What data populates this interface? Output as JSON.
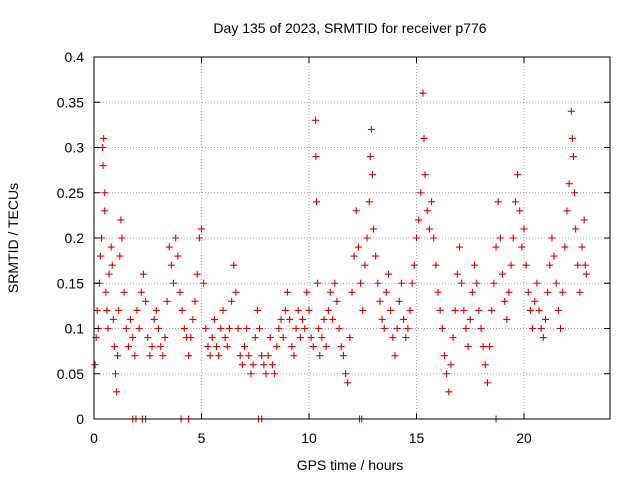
{
  "chart_data": {
    "type": "scatter",
    "title": "Day 135 of 2023, SRMTID for receiver p776",
    "xlabel": "GPS time / hours",
    "ylabel": "SRMTID / TECUs",
    "xlim": [
      0,
      24
    ],
    "ylim": [
      0,
      0.4
    ],
    "x_ticks": [
      0,
      5,
      10,
      15,
      20
    ],
    "x_tick_labels": [
      "0",
      "5",
      "10",
      "15",
      "20"
    ],
    "y_ticks": [
      0,
      0.05,
      0.1,
      0.15,
      0.2,
      0.25,
      0.3,
      0.35,
      0.4
    ],
    "y_tick_labels": [
      "0",
      "0.05",
      "0.1",
      "0.15",
      "0.2",
      "0.25",
      "0.3",
      "0.35",
      "0.4"
    ],
    "grid": true,
    "marker": "+",
    "series_color": "#e00000",
    "series": [
      {
        "name": "SRMTID",
        "points": [
          [
            0.05,
            0.06
          ],
          [
            0.1,
            0.09
          ],
          [
            0.15,
            0.12
          ],
          [
            0.2,
            0.1
          ],
          [
            0.25,
            0.15
          ],
          [
            0.3,
            0.18
          ],
          [
            0.35,
            0.2
          ],
          [
            0.4,
            0.3
          ],
          [
            0.42,
            0.28
          ],
          [
            0.45,
            0.31
          ],
          [
            0.5,
            0.25
          ],
          [
            0.5,
            0.23
          ],
          [
            0.55,
            0.14
          ],
          [
            0.6,
            0.12
          ],
          [
            0.65,
            0.1
          ],
          [
            0.7,
            0.16
          ],
          [
            0.8,
            0.19
          ],
          [
            0.85,
            0.17
          ],
          [
            0.9,
            0.11
          ],
          [
            0.95,
            0.08
          ],
          [
            1.0,
            0.05
          ],
          [
            1.05,
            0.03
          ],
          [
            1.1,
            0.07
          ],
          [
            1.15,
            0.12
          ],
          [
            1.2,
            0.18
          ],
          [
            1.25,
            0.22
          ],
          [
            1.3,
            0.2
          ],
          [
            1.4,
            0.14
          ],
          [
            1.5,
            0.1
          ],
          [
            1.6,
            0.08
          ],
          [
            1.7,
            0.11
          ],
          [
            1.8,
            0.09
          ],
          [
            1.9,
            0.07
          ],
          [
            2.0,
            0.12
          ],
          [
            2.1,
            0.1
          ],
          [
            2.2,
            0.14
          ],
          [
            2.3,
            0.16
          ],
          [
            2.4,
            0.13
          ],
          [
            2.5,
            0.09
          ],
          [
            2.6,
            0.07
          ],
          [
            2.7,
            0.08
          ],
          [
            2.8,
            0.11
          ],
          [
            2.9,
            0.12
          ],
          [
            3.0,
            0.1
          ],
          [
            3.1,
            0.08
          ],
          [
            3.2,
            0.07
          ],
          [
            3.3,
            0.09
          ],
          [
            3.4,
            0.13
          ],
          [
            3.5,
            0.19
          ],
          [
            3.6,
            0.17
          ],
          [
            3.7,
            0.15
          ],
          [
            3.8,
            0.2
          ],
          [
            3.9,
            0.18
          ],
          [
            4.0,
            0.14
          ],
          [
            4.1,
            0.12
          ],
          [
            4.2,
            0.1
          ],
          [
            4.3,
            0.09
          ],
          [
            4.4,
            0.07
          ],
          [
            4.5,
            0.09
          ],
          [
            4.6,
            0.11
          ],
          [
            4.7,
            0.13
          ],
          [
            4.8,
            0.16
          ],
          [
            4.9,
            0.2
          ],
          [
            5.0,
            0.21
          ],
          [
            5.1,
            0.15
          ],
          [
            5.2,
            0.1
          ],
          [
            5.3,
            0.08
          ],
          [
            5.4,
            0.07
          ],
          [
            5.5,
            0.09
          ],
          [
            5.6,
            0.11
          ],
          [
            5.7,
            0.08
          ],
          [
            5.8,
            0.07
          ],
          [
            5.9,
            0.1
          ],
          [
            6.0,
            0.12
          ],
          [
            6.1,
            0.09
          ],
          [
            6.2,
            0.08
          ],
          [
            6.3,
            0.1
          ],
          [
            6.4,
            0.13
          ],
          [
            6.5,
            0.17
          ],
          [
            6.6,
            0.14
          ],
          [
            6.7,
            0.1
          ],
          [
            6.8,
            0.07
          ],
          [
            6.9,
            0.06
          ],
          [
            7.0,
            0.08
          ],
          [
            7.1,
            0.1
          ],
          [
            7.2,
            0.07
          ],
          [
            7.3,
            0.05
          ],
          [
            7.4,
            0.06
          ],
          [
            7.5,
            0.09
          ],
          [
            7.6,
            0.12
          ],
          [
            7.7,
            0.1
          ],
          [
            7.8,
            0.07
          ],
          [
            7.9,
            0.06
          ],
          [
            8.0,
            0.05
          ],
          [
            8.1,
            0.07
          ],
          [
            8.2,
            0.09
          ],
          [
            8.3,
            0.06
          ],
          [
            8.4,
            0.05
          ],
          [
            8.5,
            0.08
          ],
          [
            8.6,
            0.1
          ],
          [
            8.7,
            0.11
          ],
          [
            8.8,
            0.09
          ],
          [
            8.9,
            0.12
          ],
          [
            9.0,
            0.14
          ],
          [
            9.1,
            0.11
          ],
          [
            9.2,
            0.08
          ],
          [
            9.3,
            0.07
          ],
          [
            9.4,
            0.1
          ],
          [
            9.5,
            0.12
          ],
          [
            9.6,
            0.09
          ],
          [
            9.7,
            0.11
          ],
          [
            9.8,
            0.1
          ],
          [
            9.9,
            0.14
          ],
          [
            10.0,
            0.12
          ],
          [
            10.1,
            0.09
          ],
          [
            10.2,
            0.08
          ],
          [
            10.3,
            0.33
          ],
          [
            10.32,
            0.29
          ],
          [
            10.35,
            0.24
          ],
          [
            10.4,
            0.15
          ],
          [
            10.45,
            0.1
          ],
          [
            10.5,
            0.07
          ],
          [
            10.6,
            0.09
          ],
          [
            10.7,
            0.11
          ],
          [
            10.8,
            0.08
          ],
          [
            10.9,
            0.12
          ],
          [
            11.0,
            0.14
          ],
          [
            11.1,
            0.11
          ],
          [
            11.2,
            0.15
          ],
          [
            11.3,
            0.13
          ],
          [
            11.4,
            0.1
          ],
          [
            11.5,
            0.08
          ],
          [
            11.6,
            0.07
          ],
          [
            11.7,
            0.05
          ],
          [
            11.8,
            0.04
          ],
          [
            11.9,
            0.09
          ],
          [
            12.0,
            0.14
          ],
          [
            12.1,
            0.18
          ],
          [
            12.2,
            0.23
          ],
          [
            12.3,
            0.19
          ],
          [
            12.4,
            0.15
          ],
          [
            12.5,
            0.12
          ],
          [
            12.6,
            0.17
          ],
          [
            12.7,
            0.2
          ],
          [
            12.8,
            0.24
          ],
          [
            12.85,
            0.29
          ],
          [
            12.9,
            0.32
          ],
          [
            12.95,
            0.27
          ],
          [
            13.0,
            0.21
          ],
          [
            13.1,
            0.18
          ],
          [
            13.2,
            0.15
          ],
          [
            13.3,
            0.13
          ],
          [
            13.4,
            0.11
          ],
          [
            13.5,
            0.1
          ],
          [
            13.6,
            0.14
          ],
          [
            13.7,
            0.16
          ],
          [
            13.8,
            0.12
          ],
          [
            13.9,
            0.09
          ],
          [
            14.0,
            0.07
          ],
          [
            14.1,
            0.1
          ],
          [
            14.2,
            0.13
          ],
          [
            14.3,
            0.15
          ],
          [
            14.4,
            0.11
          ],
          [
            14.5,
            0.09
          ],
          [
            14.6,
            0.1
          ],
          [
            14.7,
            0.12
          ],
          [
            14.8,
            0.15
          ],
          [
            14.9,
            0.17
          ],
          [
            15.0,
            0.2
          ],
          [
            15.1,
            0.22
          ],
          [
            15.2,
            0.25
          ],
          [
            15.3,
            0.36
          ],
          [
            15.35,
            0.31
          ],
          [
            15.4,
            0.27
          ],
          [
            15.5,
            0.23
          ],
          [
            15.6,
            0.21
          ],
          [
            15.7,
            0.24
          ],
          [
            15.8,
            0.2
          ],
          [
            15.9,
            0.17
          ],
          [
            16.0,
            0.14
          ],
          [
            16.1,
            0.12
          ],
          [
            16.2,
            0.1
          ],
          [
            16.3,
            0.07
          ],
          [
            16.4,
            0.05
          ],
          [
            16.5,
            0.03
          ],
          [
            16.6,
            0.06
          ],
          [
            16.7,
            0.09
          ],
          [
            16.8,
            0.12
          ],
          [
            16.9,
            0.16
          ],
          [
            17.0,
            0.19
          ],
          [
            17.1,
            0.15
          ],
          [
            17.2,
            0.12
          ],
          [
            17.3,
            0.1
          ],
          [
            17.4,
            0.08
          ],
          [
            17.5,
            0.11
          ],
          [
            17.6,
            0.14
          ],
          [
            17.7,
            0.17
          ],
          [
            17.8,
            0.15
          ],
          [
            17.9,
            0.12
          ],
          [
            18.0,
            0.1
          ],
          [
            18.1,
            0.08
          ],
          [
            18.2,
            0.06
          ],
          [
            18.3,
            0.04
          ],
          [
            18.4,
            0.08
          ],
          [
            18.5,
            0.12
          ],
          [
            18.6,
            0.15
          ],
          [
            18.7,
            0.19
          ],
          [
            18.8,
            0.24
          ],
          [
            18.9,
            0.2
          ],
          [
            19.0,
            0.16
          ],
          [
            19.1,
            0.13
          ],
          [
            19.2,
            0.11
          ],
          [
            19.3,
            0.14
          ],
          [
            19.4,
            0.17
          ],
          [
            19.5,
            0.2
          ],
          [
            19.6,
            0.24
          ],
          [
            19.7,
            0.27
          ],
          [
            19.8,
            0.23
          ],
          [
            19.9,
            0.19
          ],
          [
            20.0,
            0.21
          ],
          [
            20.1,
            0.17
          ],
          [
            20.2,
            0.14
          ],
          [
            20.3,
            0.12
          ],
          [
            20.4,
            0.1
          ],
          [
            20.5,
            0.13
          ],
          [
            20.6,
            0.15
          ],
          [
            20.7,
            0.12
          ],
          [
            20.8,
            0.1
          ],
          [
            20.9,
            0.09
          ],
          [
            21.0,
            0.11
          ],
          [
            21.1,
            0.14
          ],
          [
            21.2,
            0.17
          ],
          [
            21.3,
            0.2
          ],
          [
            21.4,
            0.18
          ],
          [
            21.5,
            0.15
          ],
          [
            21.6,
            0.12
          ],
          [
            21.7,
            0.1
          ],
          [
            21.8,
            0.14
          ],
          [
            21.9,
            0.19
          ],
          [
            22.0,
            0.23
          ],
          [
            22.1,
            0.26
          ],
          [
            22.2,
            0.34
          ],
          [
            22.25,
            0.31
          ],
          [
            22.3,
            0.29
          ],
          [
            22.35,
            0.25
          ],
          [
            22.4,
            0.21
          ],
          [
            22.5,
            0.17
          ],
          [
            22.6,
            0.14
          ],
          [
            22.7,
            0.19
          ],
          [
            22.8,
            0.22
          ],
          [
            22.85,
            0.17
          ],
          [
            22.9,
            0.16
          ],
          [
            1.8,
            0.0
          ],
          [
            1.95,
            0.0
          ],
          [
            2.25,
            0.0
          ],
          [
            2.4,
            0.0
          ],
          [
            4.05,
            0.0
          ],
          [
            4.4,
            0.0
          ],
          [
            7.65,
            0.0
          ],
          [
            7.8,
            0.0
          ],
          [
            12.35,
            0.0
          ],
          [
            12.45,
            0.0
          ],
          [
            18.7,
            0.0
          ]
        ]
      }
    ]
  }
}
